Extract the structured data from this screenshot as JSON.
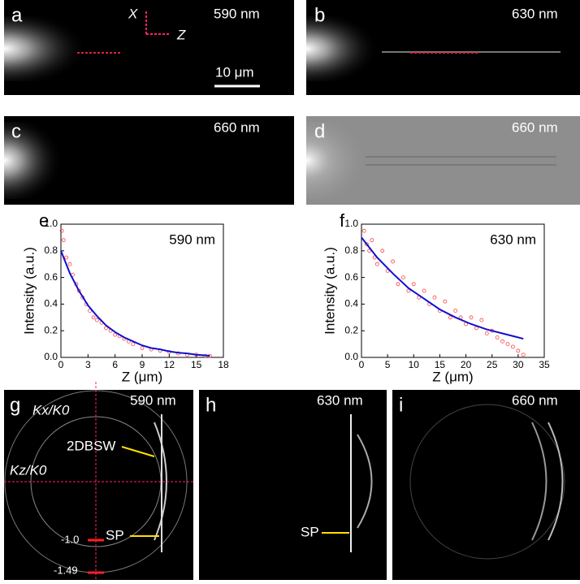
{
  "panels": {
    "a": {
      "label": "a",
      "wavelength": "590 nm",
      "axis_x": "X",
      "axis_z": "Z",
      "scale_bar": "10 μm"
    },
    "b": {
      "label": "b",
      "wavelength": "630 nm"
    },
    "c": {
      "label": "c",
      "wavelength": "660 nm"
    },
    "d": {
      "label": "d",
      "wavelength": "660 nm"
    },
    "g": {
      "label": "g",
      "wavelength": "590 nm",
      "kx": "Kx/K0",
      "kz": "Kz/K0",
      "mode_2d": "2DBSW",
      "sp": "SP",
      "tick_1": "-1.0",
      "tick_2": "-1.49"
    },
    "h": {
      "label": "h",
      "wavelength": "630 nm",
      "sp": "SP"
    },
    "i": {
      "label": "i",
      "wavelength": "660 nm"
    }
  },
  "chart_data": [
    {
      "type": "scatter",
      "panel_label": "e",
      "annotation": "590 nm",
      "xlabel": "Z (μm)",
      "ylabel": "Intensity (a.u.)",
      "xlim": [
        0,
        18
      ],
      "xticks": [
        0,
        3,
        6,
        9,
        12,
        15,
        18
      ],
      "ylim": [
        0,
        1
      ],
      "yticks": [
        {
          "value": 0,
          "label": "0.0"
        },
        0.2,
        0.4,
        0.6,
        0.8,
        {
          "value": 1,
          "label": "1.0"
        }
      ],
      "series": [
        {
          "color": "#ff4040",
          "x": [
            0.1,
            0.3,
            0.6,
            1,
            1.3,
            1.7,
            2,
            2.4,
            2.8,
            3.2,
            3.6,
            4,
            4.5,
            5,
            5.5,
            6,
            6.5,
            7,
            7.5,
            8,
            9,
            10,
            11,
            12,
            13,
            14,
            15,
            16,
            16.5
          ],
          "values": [
            0.95,
            0.88,
            0.75,
            0.7,
            0.62,
            0.55,
            0.5,
            0.45,
            0.4,
            0.35,
            0.3,
            0.28,
            0.26,
            0.22,
            0.2,
            0.17,
            0.16,
            0.14,
            0.12,
            0.1,
            0.07,
            0.06,
            0.05,
            0.04,
            0.03,
            0.02,
            0.02,
            0.01,
            0.01
          ]
        },
        {
          "color": "#1010d0",
          "line": true,
          "x": [
            0,
            1,
            2,
            3,
            4,
            5,
            6,
            7,
            8,
            9,
            10,
            11,
            12,
            13,
            14,
            15,
            16,
            16.5
          ],
          "values": [
            0.8,
            0.63,
            0.5,
            0.39,
            0.31,
            0.24,
            0.19,
            0.15,
            0.12,
            0.09,
            0.07,
            0.06,
            0.045,
            0.035,
            0.03,
            0.02,
            0.015,
            0.012
          ]
        }
      ]
    },
    {
      "type": "scatter",
      "panel_label": "f",
      "annotation": "630 nm",
      "xlabel": "Z (μm)",
      "ylabel": "Intensity (a.u.)",
      "xlim": [
        0,
        35
      ],
      "xticks": [
        0,
        5,
        10,
        15,
        20,
        25,
        30,
        35
      ],
      "ylim": [
        0,
        1
      ],
      "yticks": [
        {
          "value": 0,
          "label": "0.0"
        },
        0.2,
        0.4,
        0.6,
        0.8,
        {
          "value": 1,
          "label": "1.0"
        }
      ],
      "series": [
        {
          "color": "#ff4040",
          "x": [
            0.5,
            1,
            1.5,
            2,
            2.5,
            3,
            4,
            5,
            6,
            7,
            8,
            9,
            10,
            11,
            12,
            13,
            14,
            15,
            16,
            17,
            18,
            19,
            20,
            21,
            22,
            23,
            24,
            25,
            26,
            27,
            28,
            29,
            30,
            31
          ],
          "values": [
            0.95,
            0.85,
            0.8,
            0.88,
            0.75,
            0.7,
            0.8,
            0.65,
            0.72,
            0.55,
            0.6,
            0.5,
            0.55,
            0.45,
            0.5,
            0.4,
            0.45,
            0.35,
            0.42,
            0.3,
            0.35,
            0.3,
            0.25,
            0.3,
            0.22,
            0.28,
            0.18,
            0.2,
            0.15,
            0.12,
            0.1,
            0.08,
            0.05,
            0.02
          ]
        },
        {
          "color": "#1010d0",
          "line": true,
          "x": [
            0,
            3,
            6,
            9,
            12,
            15,
            18,
            21,
            24,
            27,
            31
          ],
          "values": [
            0.9,
            0.75,
            0.63,
            0.52,
            0.44,
            0.36,
            0.3,
            0.25,
            0.21,
            0.18,
            0.14
          ]
        }
      ]
    }
  ]
}
